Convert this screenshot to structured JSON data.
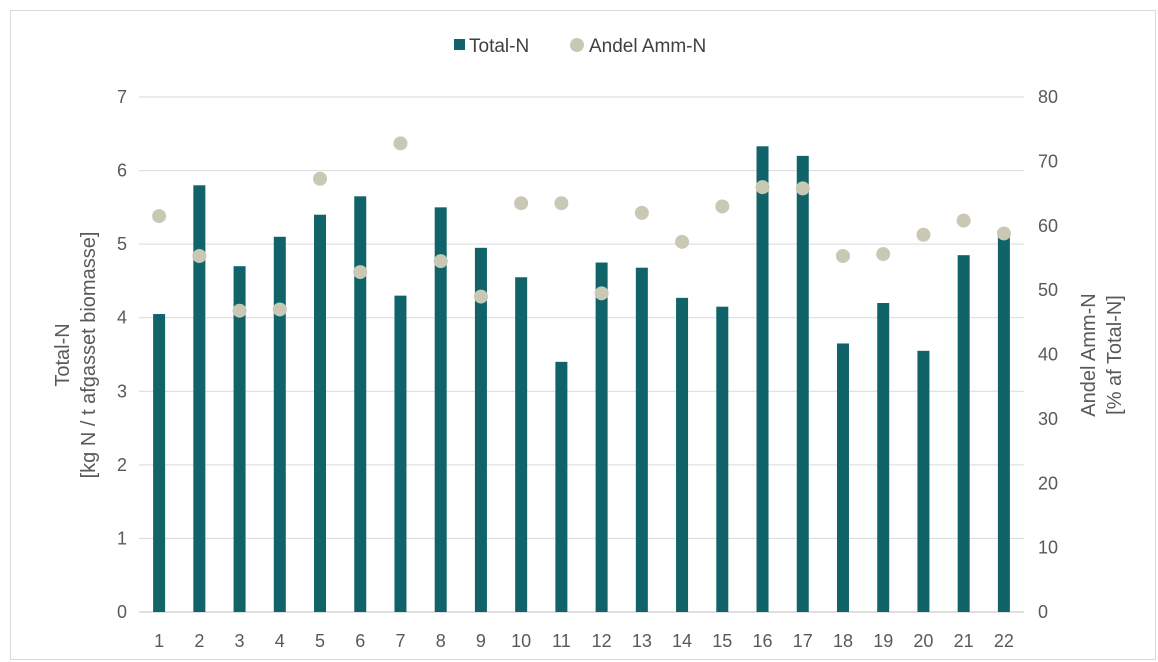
{
  "chart_data": {
    "type": "bar",
    "categories": [
      "1",
      "2",
      "3",
      "4",
      "5",
      "6",
      "7",
      "8",
      "9",
      "10",
      "11",
      "12",
      "13",
      "14",
      "15",
      "16",
      "17",
      "18",
      "19",
      "20",
      "21",
      "22"
    ],
    "series": [
      {
        "name": "Total-N",
        "type": "bar",
        "axis": "left",
        "color": "#0f6369",
        "values": [
          4.05,
          5.8,
          4.7,
          5.1,
          5.4,
          5.65,
          4.3,
          5.5,
          4.95,
          4.55,
          3.4,
          4.75,
          4.68,
          4.27,
          4.15,
          6.33,
          6.2,
          3.65,
          4.2,
          3.55,
          4.85,
          5.1
        ]
      },
      {
        "name": "Andel Amm-N",
        "type": "scatter",
        "axis": "right",
        "color": "#c8c8b4",
        "values": [
          61.5,
          55.3,
          46.8,
          47.0,
          67.3,
          52.8,
          72.8,
          54.5,
          49.0,
          63.5,
          63.5,
          49.5,
          62.0,
          57.5,
          63.0,
          66.0,
          65.8,
          55.3,
          55.6,
          58.6,
          60.8,
          58.8
        ]
      }
    ],
    "ylabel": [
      "Total-N",
      "[kg N / t afgasset biomasse]"
    ],
    "ylabel_right": [
      "Andel Amm-N",
      "[% af Total-N]"
    ],
    "ylim": [
      0,
      7
    ],
    "ylim_right": [
      0,
      80
    ],
    "yticks": [
      "0",
      "1",
      "2",
      "3",
      "4",
      "5",
      "6",
      "7"
    ],
    "yticks_right": [
      "0",
      "10",
      "20",
      "30",
      "40",
      "50",
      "60",
      "70",
      "80"
    ],
    "grid": true,
    "legend_position": "top-center"
  }
}
